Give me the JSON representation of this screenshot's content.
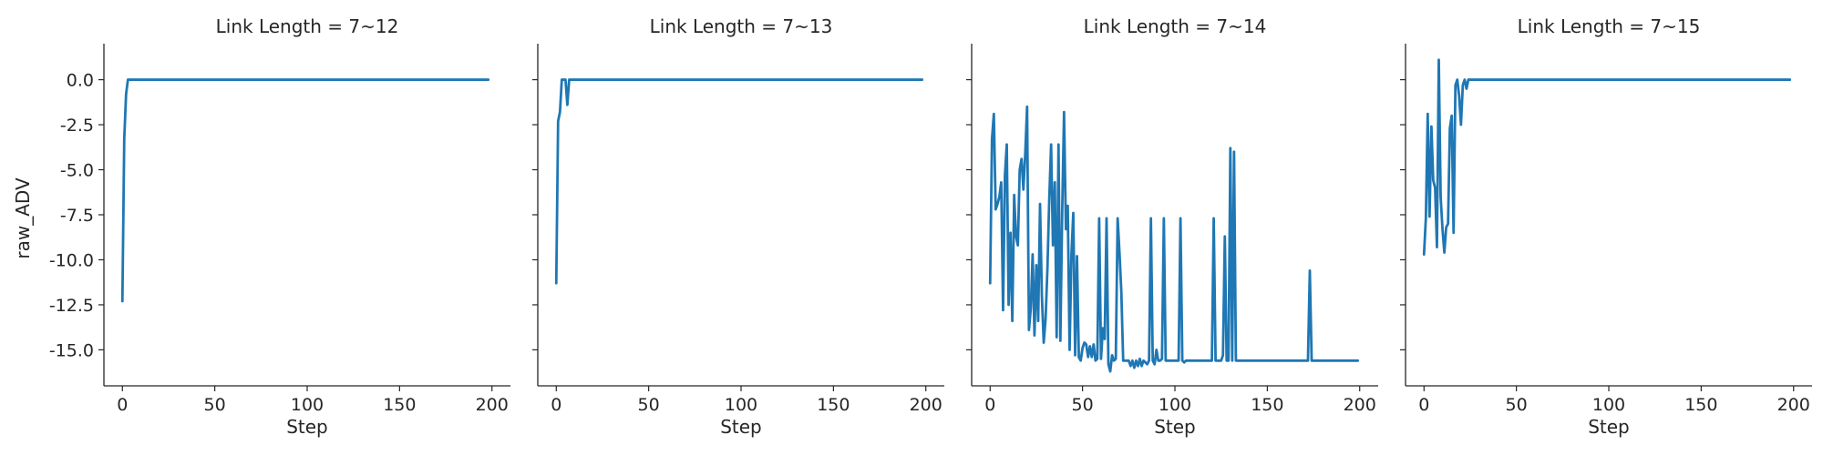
{
  "chart_data": {
    "type": "line",
    "layout": "facet-row",
    "shared_y": true,
    "xlabel": "Step",
    "ylabel": "raw_ADV",
    "xlim": [
      -10,
      210
    ],
    "ylim": [
      -17,
      2
    ],
    "xticks": [
      0,
      50,
      100,
      150,
      200
    ],
    "yticks": [
      0.0,
      -2.5,
      -5.0,
      -7.5,
      -10.0,
      -12.5,
      -15.0
    ],
    "ytick_labels": [
      "0.0",
      "-2.5",
      "-5.0",
      "-7.5",
      "-10.0",
      "-12.5",
      "-15.0"
    ],
    "line_color": "#1f77b4",
    "grid": false,
    "legend": "none",
    "panels": [
      {
        "title": "Link Length = 7~12",
        "points": [
          [
            0,
            -12.3
          ],
          [
            1,
            -3.3
          ],
          [
            2,
            -0.8
          ],
          [
            3,
            0
          ],
          [
            198,
            0
          ]
        ]
      },
      {
        "title": "Link Length = 7~13",
        "points": [
          [
            0,
            -11.3
          ],
          [
            1,
            -2.3
          ],
          [
            2,
            -1.8
          ],
          [
            3,
            0
          ],
          [
            5,
            0
          ],
          [
            6,
            -1.4
          ],
          [
            7,
            0
          ],
          [
            198,
            0
          ]
        ]
      },
      {
        "title": "Link Length = 7~14",
        "points": [
          [
            0,
            -11.3
          ],
          [
            1,
            -3.3
          ],
          [
            2,
            -1.9
          ],
          [
            3,
            -7.2
          ],
          [
            4,
            -6.9
          ],
          [
            5,
            -6.5
          ],
          [
            6,
            -5.7
          ],
          [
            7,
            -12.8
          ],
          [
            8,
            -5.3
          ],
          [
            9,
            -3.6
          ],
          [
            10,
            -12.5
          ],
          [
            11,
            -8.5
          ],
          [
            12,
            -13.4
          ],
          [
            13,
            -6.4
          ],
          [
            14,
            -8.7
          ],
          [
            15,
            -9.2
          ],
          [
            16,
            -5.0
          ],
          [
            17,
            -4.4
          ],
          [
            18,
            -6.1
          ],
          [
            19,
            -4.1
          ],
          [
            20,
            -1.5
          ],
          [
            21,
            -13.9
          ],
          [
            22,
            -12.7
          ],
          [
            23,
            -9.7
          ],
          [
            24,
            -14.2
          ],
          [
            25,
            -10.3
          ],
          [
            26,
            -13.4
          ],
          [
            27,
            -6.9
          ],
          [
            28,
            -12.0
          ],
          [
            29,
            -14.6
          ],
          [
            30,
            -13.3
          ],
          [
            31,
            -10.5
          ],
          [
            32,
            -6.6
          ],
          [
            33,
            -3.6
          ],
          [
            34,
            -9.2
          ],
          [
            35,
            -5.7
          ],
          [
            36,
            -14.3
          ],
          [
            37,
            -3.6
          ],
          [
            38,
            -14.5
          ],
          [
            39,
            -7.3
          ],
          [
            40,
            -1.8
          ],
          [
            41,
            -8.3
          ],
          [
            42,
            -7.0
          ],
          [
            43,
            -15.0
          ],
          [
            44,
            -9.7
          ],
          [
            45,
            -7.4
          ],
          [
            46,
            -15.3
          ],
          [
            47,
            -9.8
          ],
          [
            48,
            -15.4
          ],
          [
            49,
            -15.6
          ],
          [
            50,
            -14.9
          ],
          [
            51,
            -14.6
          ],
          [
            52,
            -14.7
          ],
          [
            53,
            -15.4
          ],
          [
            54,
            -14.8
          ],
          [
            55,
            -15.4
          ],
          [
            56,
            -14.7
          ],
          [
            57,
            -15.6
          ],
          [
            58,
            -15.5
          ],
          [
            59,
            -7.7
          ],
          [
            60,
            -15.5
          ],
          [
            61,
            -13.8
          ],
          [
            62,
            -14.4
          ],
          [
            63,
            -7.7
          ],
          [
            64,
            -15.8
          ],
          [
            65,
            -16.2
          ],
          [
            66,
            -15.3
          ],
          [
            67,
            -15.6
          ],
          [
            68,
            -15.5
          ],
          [
            69,
            -7.7
          ],
          [
            70,
            -9.6
          ],
          [
            71,
            -11.8
          ],
          [
            72,
            -15.6
          ],
          [
            73,
            -15.6
          ],
          [
            74,
            -15.6
          ],
          [
            75,
            -15.6
          ],
          [
            76,
            -15.9
          ],
          [
            77,
            -15.6
          ],
          [
            78,
            -16.0
          ],
          [
            79,
            -15.6
          ],
          [
            80,
            -15.9
          ],
          [
            81,
            -15.5
          ],
          [
            82,
            -15.9
          ],
          [
            83,
            -15.6
          ],
          [
            84,
            -15.7
          ],
          [
            85,
            -15.8
          ],
          [
            86,
            -15.6
          ],
          [
            87,
            -7.7
          ],
          [
            88,
            -15.6
          ],
          [
            89,
            -15.8
          ],
          [
            90,
            -15.0
          ],
          [
            91,
            -15.6
          ],
          [
            92,
            -15.6
          ],
          [
            93,
            -15.5
          ],
          [
            94,
            -7.7
          ],
          [
            95,
            -15.6
          ],
          [
            96,
            -15.6
          ],
          [
            97,
            -15.6
          ],
          [
            98,
            -15.6
          ],
          [
            99,
            -15.6
          ],
          [
            100,
            -15.6
          ],
          [
            101,
            -15.6
          ],
          [
            102,
            -15.6
          ],
          [
            103,
            -7.7
          ],
          [
            104,
            -15.6
          ],
          [
            105,
            -15.7
          ],
          [
            106,
            -15.6
          ],
          [
            120,
            -15.6
          ],
          [
            121,
            -7.7
          ],
          [
            122,
            -15.6
          ],
          [
            125,
            -15.6
          ],
          [
            126,
            -15.3
          ],
          [
            127,
            -8.7
          ],
          [
            128,
            -15.6
          ],
          [
            129,
            -15.6
          ],
          [
            130,
            -3.8
          ],
          [
            131,
            -15.6
          ],
          [
            132,
            -4.0
          ],
          [
            133,
            -15.6
          ],
          [
            172,
            -15.6
          ],
          [
            173,
            -10.6
          ],
          [
            174,
            -15.6
          ],
          [
            199,
            -15.6
          ]
        ]
      },
      {
        "title": "Link Length = 7~15",
        "points": [
          [
            0,
            -9.7
          ],
          [
            1,
            -7.7
          ],
          [
            2,
            -1.9
          ],
          [
            3,
            -7.6
          ],
          [
            4,
            -2.6
          ],
          [
            5,
            -5.6
          ],
          [
            6,
            -6.0
          ],
          [
            7,
            -9.3
          ],
          [
            8,
            1.1
          ],
          [
            9,
            -6.5
          ],
          [
            10,
            -8.3
          ],
          [
            11,
            -9.6
          ],
          [
            12,
            -8.2
          ],
          [
            13,
            -8.0
          ],
          [
            14,
            -2.7
          ],
          [
            15,
            -2.0
          ],
          [
            16,
            -8.5
          ],
          [
            17,
            -0.3
          ],
          [
            18,
            0
          ],
          [
            19,
            -0.9
          ],
          [
            20,
            -2.5
          ],
          [
            21,
            -0.3
          ],
          [
            22,
            0
          ],
          [
            23,
            -0.5
          ],
          [
            24,
            0
          ],
          [
            198,
            0
          ]
        ]
      }
    ]
  }
}
